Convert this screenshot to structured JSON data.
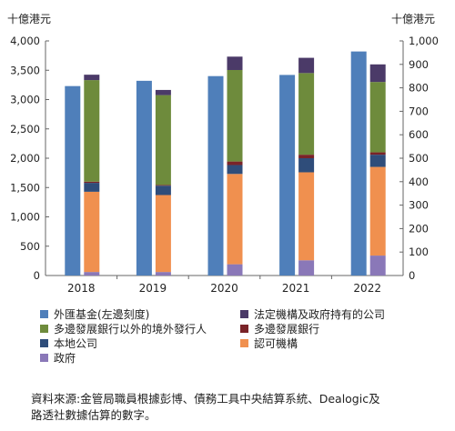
{
  "chart_data": {
    "type": "bar",
    "categories": [
      "2018",
      "2019",
      "2020",
      "2021",
      "2022"
    ],
    "left_axis": {
      "label": "十億港元",
      "ylim": [
        0,
        4000
      ],
      "ticks": [
        "0",
        "500",
        "1,000",
        "1,500",
        "2,000",
        "2,500",
        "3,000",
        "3,500",
        "4,000"
      ]
    },
    "right_axis": {
      "label": "十億港元",
      "ylim": [
        0,
        1000
      ],
      "ticks": [
        "0",
        "100",
        "200",
        "300",
        "400",
        "500",
        "600",
        "700",
        "800",
        "900",
        "1,000"
      ]
    },
    "bar_series": {
      "name": "外匯基金(左邊刻度)",
      "axis": "left",
      "color": "#4f7fba",
      "values": [
        3230,
        3320,
        3400,
        3420,
        3820
      ]
    },
    "stacked_series": [
      {
        "name": "政府",
        "axis": "right",
        "color": "#8a78b8",
        "values": [
          15,
          15,
          48,
          65,
          85
        ]
      },
      {
        "name": "認可機構",
        "axis": "right",
        "color": "#f0904f",
        "values": [
          342,
          328,
          385,
          375,
          378
        ]
      },
      {
        "name": "本地公司",
        "axis": "right",
        "color": "#2f4d7a",
        "values": [
          38,
          40,
          38,
          60,
          52
        ]
      },
      {
        "name": "多邊發展銀行",
        "axis": "right",
        "color": "#7a2328",
        "values": [
          5,
          3,
          15,
          15,
          10
        ]
      },
      {
        "name": "多邊發展銀行以外的境外發行人",
        "axis": "right",
        "color": "#6e8b3c",
        "values": [
          433,
          383,
          390,
          348,
          300
        ]
      },
      {
        "name": "法定機構及政府持有的公司",
        "axis": "right",
        "color": "#4b3a68",
        "values": [
          23,
          22,
          57,
          65,
          75
        ]
      }
    ],
    "legend_order": [
      "外匯基金(左邊刻度)",
      "法定機構及政府持有的公司",
      "多邊發展銀行以外的境外發行人",
      "多邊發展銀行",
      "本地公司",
      "認可機構",
      "政府"
    ],
    "legend_position": "bottom",
    "grid": false
  },
  "legend": {
    "fx_fund": "外匯基金(左邊刻度)",
    "statutory": "法定機構及政府持有的公司",
    "non_mdb": "多邊發展銀行以外的境外發行人",
    "mdb": "多邊發展銀行",
    "local": "本地公司",
    "ai": "認可機構",
    "govt": "政府"
  },
  "colors": {
    "fx_fund": "#4f7fba",
    "statutory": "#4b3a68",
    "non_mdb": "#6e8b3c",
    "mdb": "#7a2328",
    "local": "#2f4d7a",
    "ai": "#f0904f",
    "govt": "#8a78b8"
  },
  "source": {
    "line1": "資料來源:金管局職員根據彭博、債務工具中央結算系統、Dealogic及",
    "line2": "路透社數據估算的數字。"
  }
}
